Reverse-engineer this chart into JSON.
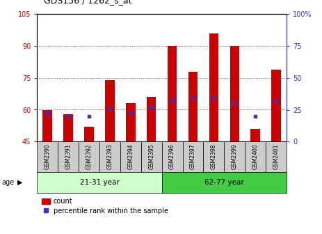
{
  "title": "GDS156 / 1262_s_at",
  "samples": [
    "GSM2390",
    "GSM2391",
    "GSM2392",
    "GSM2393",
    "GSM2394",
    "GSM2395",
    "GSM2396",
    "GSM2397",
    "GSM2398",
    "GSM2399",
    "GSM2400",
    "GSM2401"
  ],
  "count_values": [
    60,
    58,
    52,
    74,
    63,
    66,
    90,
    78,
    96,
    90,
    51,
    79
  ],
  "percentile_values": [
    22,
    20,
    20,
    25,
    23,
    27,
    33,
    34,
    34,
    31,
    20,
    32
  ],
  "bar_bottom": 45,
  "ylim_left": [
    45,
    105
  ],
  "ylim_right": [
    0,
    100
  ],
  "yticks_left": [
    45,
    60,
    75,
    90,
    105
  ],
  "yticks_right": [
    0,
    25,
    50,
    75,
    100
  ],
  "grid_lines": [
    60,
    75,
    90
  ],
  "group1_label": "21-31 year",
  "group2_label": "62-77 year",
  "group1_count": 6,
  "group2_count": 6,
  "age_label": "age",
  "bar_color": "#cc0000",
  "dot_color": "#3333cc",
  "group1_bg": "#ccffcc",
  "group2_bg": "#44cc44",
  "xlabel_bg": "#cccccc",
  "legend_count_label": "count",
  "legend_pct_label": "percentile rank within the sample",
  "dotted_grid_color": "#555555",
  "left_axis_color": "#cc0000",
  "right_axis_color": "#3333cc",
  "bg_color": "#ffffff"
}
